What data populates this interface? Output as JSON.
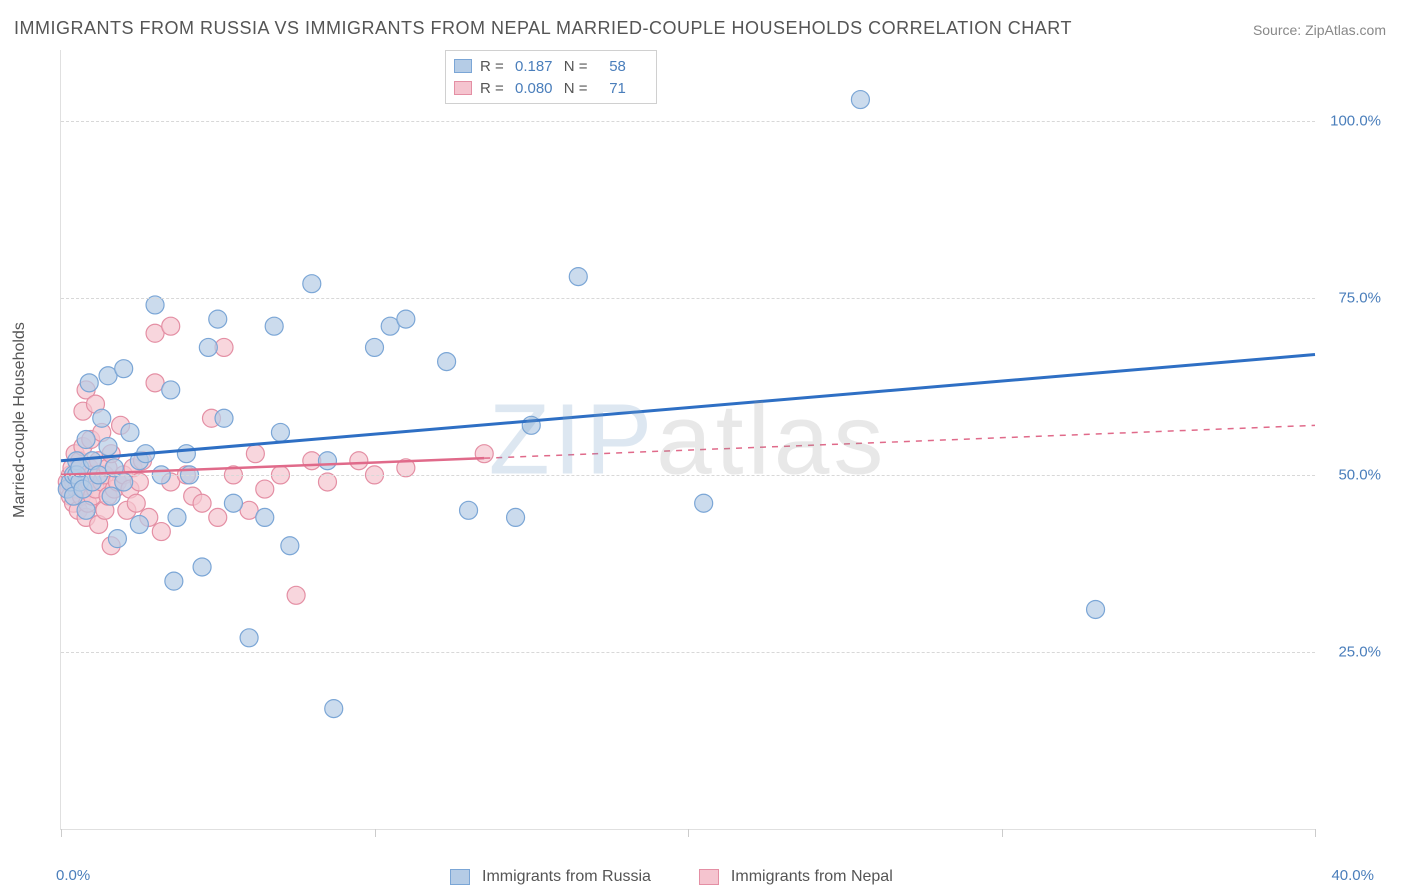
{
  "title": "IMMIGRANTS FROM RUSSIA VS IMMIGRANTS FROM NEPAL MARRIED-COUPLE HOUSEHOLDS CORRELATION CHART",
  "source": "Source: ZipAtlas.com",
  "y_axis_label": "Married-couple Households",
  "watermark_a": "ZIP",
  "watermark_b": "atlas",
  "chart": {
    "type": "scatter",
    "xlim": [
      0,
      40
    ],
    "ylim": [
      0,
      110
    ],
    "x_ticks": [
      0,
      10,
      20,
      30,
      40
    ],
    "x_tick_labels": [
      "0.0%",
      "",
      "",
      "",
      "40.0%"
    ],
    "y_ticks": [
      25,
      50,
      75,
      100
    ],
    "y_tick_labels": [
      "25.0%",
      "50.0%",
      "75.0%",
      "100.0%"
    ],
    "marker_radius": 9,
    "marker_stroke_width": 1.2,
    "grid_color": "#d8d8d8",
    "background_color": "#ffffff",
    "series": [
      {
        "name": "Immigrants from Russia",
        "color_fill": "#b5cce6",
        "color_stroke": "#7ba6d6",
        "line_color": "#2e6fc4",
        "line_width": 3,
        "R": "0.187",
        "N": "58",
        "trend": {
          "x1": 0,
          "y1": 52,
          "x2": 40,
          "y2": 67,
          "dashed_after_x": 40
        },
        "points": [
          [
            0.2,
            48
          ],
          [
            0.3,
            49
          ],
          [
            0.4,
            50
          ],
          [
            0.4,
            47
          ],
          [
            0.5,
            52
          ],
          [
            0.5,
            50
          ],
          [
            0.6,
            49
          ],
          [
            0.6,
            51
          ],
          [
            0.7,
            48
          ],
          [
            0.8,
            55
          ],
          [
            0.8,
            45
          ],
          [
            0.9,
            63
          ],
          [
            1.0,
            49
          ],
          [
            1.0,
            52
          ],
          [
            1.2,
            50
          ],
          [
            1.3,
            58
          ],
          [
            1.5,
            54
          ],
          [
            1.5,
            64
          ],
          [
            1.6,
            47
          ],
          [
            1.7,
            51
          ],
          [
            1.8,
            41
          ],
          [
            2.0,
            65
          ],
          [
            2.0,
            49
          ],
          [
            2.2,
            56
          ],
          [
            2.5,
            43
          ],
          [
            2.5,
            52
          ],
          [
            2.7,
            53
          ],
          [
            3.0,
            74
          ],
          [
            3.2,
            50
          ],
          [
            3.5,
            62
          ],
          [
            3.6,
            35
          ],
          [
            3.7,
            44
          ],
          [
            4.0,
            53
          ],
          [
            4.1,
            50
          ],
          [
            4.5,
            37
          ],
          [
            4.7,
            68
          ],
          [
            5.0,
            72
          ],
          [
            5.2,
            58
          ],
          [
            5.5,
            46
          ],
          [
            6.0,
            27
          ],
          [
            6.5,
            44
          ],
          [
            6.8,
            71
          ],
          [
            7.0,
            56
          ],
          [
            7.3,
            40
          ],
          [
            8.0,
            77
          ],
          [
            8.5,
            52
          ],
          [
            8.7,
            17
          ],
          [
            10.0,
            68
          ],
          [
            10.5,
            71
          ],
          [
            11.0,
            72
          ],
          [
            12.3,
            66
          ],
          [
            13.0,
            45
          ],
          [
            14.5,
            44
          ],
          [
            15.0,
            57
          ],
          [
            16.5,
            78
          ],
          [
            20.5,
            46
          ],
          [
            25.5,
            103
          ],
          [
            33.0,
            31
          ]
        ]
      },
      {
        "name": "Immigrants from Nepal",
        "color_fill": "#f5c4cf",
        "color_stroke": "#e48fa4",
        "line_color": "#e06a8a",
        "line_width": 2.5,
        "R": "0.080",
        "N": "71",
        "trend": {
          "x1": 0,
          "y1": 50,
          "x2": 13.5,
          "y2": 53,
          "dashed_after_x": 13.5,
          "dash_x2": 40,
          "dash_y2": 57
        },
        "points": [
          [
            0.2,
            49
          ],
          [
            0.25,
            48
          ],
          [
            0.3,
            50
          ],
          [
            0.3,
            47
          ],
          [
            0.35,
            51
          ],
          [
            0.4,
            46
          ],
          [
            0.4,
            49
          ],
          [
            0.45,
            53
          ],
          [
            0.5,
            48
          ],
          [
            0.5,
            50
          ],
          [
            0.55,
            45
          ],
          [
            0.6,
            52
          ],
          [
            0.6,
            49
          ],
          [
            0.65,
            47
          ],
          [
            0.7,
            54
          ],
          [
            0.7,
            59
          ],
          [
            0.75,
            48
          ],
          [
            0.8,
            44
          ],
          [
            0.8,
            62
          ],
          [
            0.85,
            46
          ],
          [
            0.9,
            51
          ],
          [
            0.9,
            49
          ],
          [
            0.95,
            55
          ],
          [
            1.0,
            47
          ],
          [
            1.0,
            50
          ],
          [
            1.1,
            60
          ],
          [
            1.1,
            48
          ],
          [
            1.2,
            43
          ],
          [
            1.2,
            52
          ],
          [
            1.3,
            49
          ],
          [
            1.3,
            56
          ],
          [
            1.4,
            45
          ],
          [
            1.4,
            50
          ],
          [
            1.5,
            47
          ],
          [
            1.5,
            51
          ],
          [
            1.6,
            40
          ],
          [
            1.6,
            53
          ],
          [
            1.7,
            48
          ],
          [
            1.8,
            49
          ],
          [
            1.9,
            57
          ],
          [
            2.0,
            50
          ],
          [
            2.1,
            45
          ],
          [
            2.2,
            48
          ],
          [
            2.3,
            51
          ],
          [
            2.4,
            46
          ],
          [
            2.5,
            49
          ],
          [
            2.6,
            52
          ],
          [
            2.8,
            44
          ],
          [
            3.0,
            63
          ],
          [
            3.0,
            70
          ],
          [
            3.2,
            42
          ],
          [
            3.5,
            71
          ],
          [
            3.5,
            49
          ],
          [
            4.0,
            50
          ],
          [
            4.2,
            47
          ],
          [
            4.5,
            46
          ],
          [
            4.8,
            58
          ],
          [
            5.0,
            44
          ],
          [
            5.2,
            68
          ],
          [
            5.5,
            50
          ],
          [
            6.0,
            45
          ],
          [
            6.2,
            53
          ],
          [
            6.5,
            48
          ],
          [
            7.0,
            50
          ],
          [
            7.5,
            33
          ],
          [
            8.0,
            52
          ],
          [
            8.5,
            49
          ],
          [
            9.5,
            52
          ],
          [
            10.0,
            50
          ],
          [
            11.0,
            51
          ],
          [
            13.5,
            53
          ]
        ]
      }
    ]
  },
  "legend_top": {
    "rows": [
      {
        "swatch_fill": "#b5cce6",
        "swatch_stroke": "#7ba6d6",
        "r_label": "R =",
        "r_val": "0.187",
        "n_label": "N =",
        "n_val": "58"
      },
      {
        "swatch_fill": "#f5c4cf",
        "swatch_stroke": "#e48fa4",
        "r_label": "R =",
        "r_val": "0.080",
        "n_label": "N =",
        "n_val": "71"
      }
    ]
  },
  "legend_bottom": {
    "items": [
      {
        "swatch_fill": "#b5cce6",
        "swatch_stroke": "#7ba6d6",
        "label": "Immigrants from Russia"
      },
      {
        "swatch_fill": "#f5c4cf",
        "swatch_stroke": "#e48fa4",
        "label": "Immigrants from Nepal"
      }
    ]
  }
}
